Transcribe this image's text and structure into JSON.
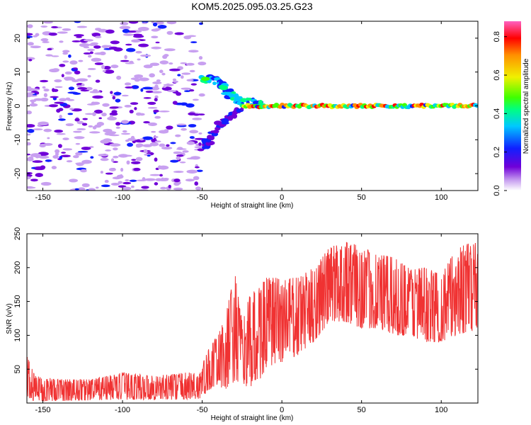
{
  "title": "KOM5.2025.095.03.25.G23",
  "chart_data": [
    {
      "type": "heatmap",
      "xlabel": "Height of straight line (km)",
      "ylabel": "Frequency (Hz)",
      "xlim": [
        -160,
        123
      ],
      "ylim": [
        -25,
        25
      ],
      "xticks": [
        -150,
        -100,
        -50,
        0,
        50,
        100
      ],
      "yticks": [
        -20,
        -10,
        0,
        10,
        20
      ],
      "grid": false,
      "colorbar": {
        "label": "Normalized spectral amplitude",
        "ticks": [
          0.0,
          0.2,
          0.4,
          0.6,
          0.8
        ],
        "range": [
          0.0,
          0.88
        ],
        "colormap": "rainbow",
        "colors": [
          "#ffffff",
          "#c8a0f0",
          "#7000d8",
          "#1020ff",
          "#00c8ff",
          "#00ff80",
          "#40ff00",
          "#f0f000",
          "#ff9000",
          "#ff0000",
          "#ff3080",
          "#ff60c0"
        ]
      },
      "features": [
        {
          "description": "scattered low-amplitude noise",
          "x_range": [
            -160,
            -50
          ],
          "freq_range": [
            -25,
            25
          ],
          "amplitude": 0.15
        },
        {
          "description": "upper arc",
          "points": [
            [
              -50,
              8.5
            ],
            [
              -40,
              7
            ],
            [
              -33,
              3.5
            ],
            [
              -25,
              1.5
            ],
            [
              -10,
              0.5
            ]
          ],
          "amplitude": 0.35
        },
        {
          "description": "lower arc",
          "points": [
            [
              -50,
              -13
            ],
            [
              -42,
              -7
            ],
            [
              -33,
              -3
            ],
            [
              -25,
              -1.5
            ]
          ],
          "amplitude": 0.2
        },
        {
          "description": "bright spot",
          "x": -48,
          "freq": 8,
          "amplitude": 0.45
        },
        {
          "description": "stable carrier line",
          "x_range": [
            -25,
            123
          ],
          "freq": 0,
          "amplitude": 0.5
        }
      ]
    },
    {
      "type": "line",
      "xlabel": "Height of straight line (km)",
      "ylabel": "SNR (v/v)",
      "xlim": [
        -160,
        123
      ],
      "ylim": [
        0,
        250
      ],
      "xticks": [
        -150,
        -100,
        -50,
        0,
        50,
        100
      ],
      "yticks": [
        50,
        100,
        150,
        200,
        250
      ],
      "grid": false,
      "series": [
        {
          "color": "#f03232",
          "envelope": [
            {
              "x": -160,
              "low": 5,
              "high": 70
            },
            {
              "x": -155,
              "low": 3,
              "high": 40
            },
            {
              "x": -140,
              "low": 3,
              "high": 35
            },
            {
              "x": -120,
              "low": 4,
              "high": 35
            },
            {
              "x": -100,
              "low": 5,
              "high": 45
            },
            {
              "x": -80,
              "low": 5,
              "high": 40
            },
            {
              "x": -60,
              "low": 5,
              "high": 45
            },
            {
              "x": -52,
              "low": 5,
              "high": 45
            },
            {
              "x": -45,
              "low": 20,
              "high": 85
            },
            {
              "x": -40,
              "low": 25,
              "high": 100
            },
            {
              "x": -35,
              "low": 20,
              "high": 130
            },
            {
              "x": -30,
              "low": 30,
              "high": 200
            },
            {
              "x": -25,
              "low": 30,
              "high": 120
            },
            {
              "x": -20,
              "low": 20,
              "high": 160
            },
            {
              "x": -15,
              "low": 30,
              "high": 170
            },
            {
              "x": -10,
              "low": 50,
              "high": 185
            },
            {
              "x": 0,
              "low": 60,
              "high": 185
            },
            {
              "x": 10,
              "low": 70,
              "high": 185
            },
            {
              "x": 20,
              "low": 90,
              "high": 200
            },
            {
              "x": 30,
              "low": 120,
              "high": 230
            },
            {
              "x": 40,
              "low": 120,
              "high": 240
            },
            {
              "x": 50,
              "low": 110,
              "high": 230
            },
            {
              "x": 60,
              "low": 110,
              "high": 220
            },
            {
              "x": 70,
              "low": 100,
              "high": 215
            },
            {
              "x": 80,
              "low": 100,
              "high": 200
            },
            {
              "x": 90,
              "low": 90,
              "high": 200
            },
            {
              "x": 100,
              "low": 90,
              "high": 190
            },
            {
              "x": 110,
              "low": 100,
              "high": 230
            },
            {
              "x": 123,
              "low": 110,
              "high": 240
            }
          ]
        }
      ]
    }
  ]
}
